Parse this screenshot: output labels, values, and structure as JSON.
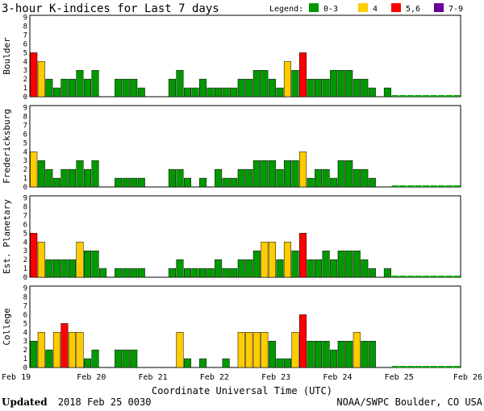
{
  "chart_data": {
    "type": "bar",
    "title": "3-hour K-indices for Last 7 days",
    "legend": {
      "label": "Legend:",
      "entries": [
        {
          "label": "0-3",
          "color": "#009900"
        },
        {
          "label": "4",
          "color": "#ffcc00"
        },
        {
          "label": "5,6",
          "color": "#ff0000"
        },
        {
          "label": "7-9",
          "color": "#660099"
        }
      ]
    },
    "xlabel": "Coordinate Universal Time (UTC)",
    "x_ticks": [
      "Feb 19",
      "Feb 20",
      "Feb 21",
      "Feb 22",
      "Feb 23",
      "Feb 24",
      "Feb 25",
      "Feb 26"
    ],
    "ylim": [
      0,
      9
    ],
    "y_ticks": [
      "0",
      "1",
      "2",
      "3",
      "4",
      "5",
      "6",
      "7",
      "8",
      "9"
    ],
    "grid": false,
    "series": [
      {
        "name": "Boulder",
        "values": [
          5,
          4,
          2,
          1,
          2,
          2,
          3,
          2,
          3,
          0,
          0,
          2,
          2,
          2,
          1,
          0,
          0,
          0,
          2,
          3,
          1,
          1,
          2,
          1,
          1,
          1,
          1,
          2,
          2,
          3,
          3,
          2,
          1,
          4,
          3,
          5,
          2,
          2,
          2,
          3,
          3,
          3,
          2,
          2,
          1,
          0,
          1
        ]
      },
      {
        "name": "Fredericksburg",
        "values": [
          4,
          3,
          2,
          1,
          2,
          2,
          3,
          2,
          3,
          0,
          0,
          1,
          1,
          1,
          1,
          0,
          0,
          0,
          2,
          2,
          1,
          0,
          1,
          0,
          2,
          1,
          1,
          2,
          2,
          3,
          3,
          3,
          2,
          3,
          3,
          4,
          1,
          2,
          2,
          1,
          3,
          3,
          2,
          2,
          1,
          0,
          0
        ]
      },
      {
        "name": "Est. Planetary",
        "values": [
          5,
          4,
          2,
          2,
          2,
          2,
          4,
          3,
          3,
          1,
          0,
          1,
          1,
          1,
          1,
          0,
          0,
          0,
          1,
          2,
          1,
          1,
          1,
          1,
          2,
          1,
          1,
          2,
          2,
          3,
          4,
          4,
          2,
          4,
          3,
          5,
          2,
          2,
          3,
          2,
          3,
          3,
          3,
          2,
          1,
          0,
          1
        ]
      },
      {
        "name": "College",
        "values": [
          3,
          4,
          2,
          4,
          5,
          4,
          4,
          1,
          2,
          0,
          0,
          2,
          2,
          2,
          0,
          0,
          0,
          0,
          0,
          4,
          1,
          0,
          1,
          0,
          0,
          1,
          0,
          4,
          4,
          4,
          4,
          3,
          1,
          1,
          4,
          6,
          3,
          3,
          3,
          2,
          3,
          3,
          4,
          3,
          3,
          0,
          0
        ]
      }
    ]
  },
  "footer": {
    "updated_label": "Updated",
    "updated_value": "2018 Feb 25 0030",
    "source": "NOAA/SWPC Boulder, CO USA"
  }
}
